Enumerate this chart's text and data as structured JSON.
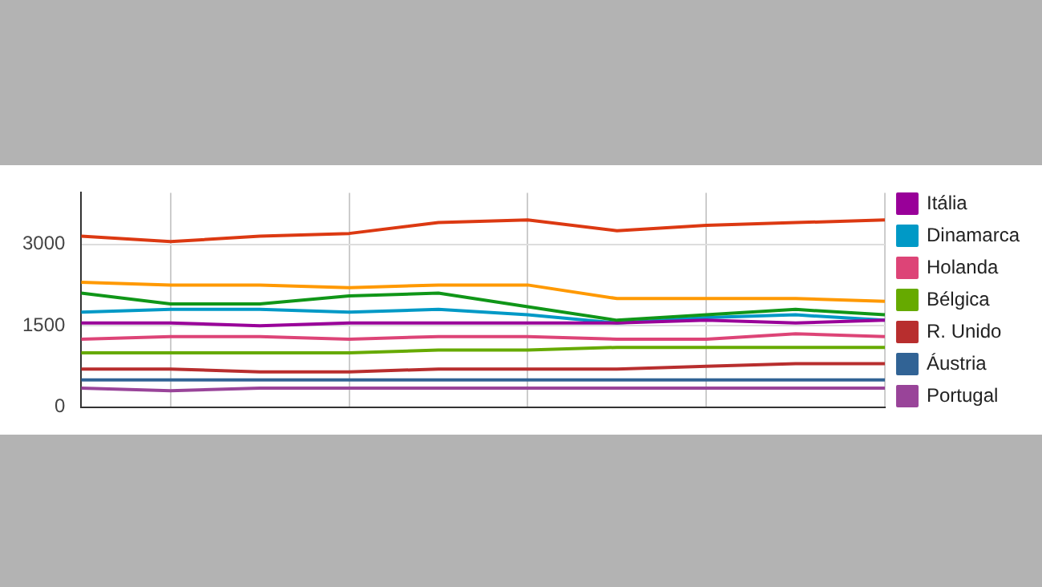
{
  "chart_data": {
    "type": "line",
    "categories": [
      null,
      null,
      null,
      null,
      null,
      null,
      null,
      null,
      null,
      null
    ],
    "series": [
      {
        "color": "#dc3912",
        "values": [
          3150,
          3050,
          3150,
          3200,
          3400,
          3450,
          3250,
          3350,
          3400,
          3450
        ]
      },
      {
        "color": "#ff9900",
        "values": [
          2300,
          2250,
          2250,
          2200,
          2250,
          2250,
          2000,
          2000,
          2000,
          1950
        ]
      },
      {
        "color": "#109618",
        "values": [
          2100,
          1900,
          1900,
          2050,
          2100,
          1850,
          1600,
          1700,
          1800,
          1700
        ]
      },
      {
        "name": "Itália",
        "color": "#990099",
        "values": [
          1550,
          1550,
          1500,
          1550,
          1550,
          1550,
          1550,
          1600,
          1550,
          1600
        ]
      },
      {
        "name": "Dinamarca",
        "color": "#0099c6",
        "values": [
          1750,
          1800,
          1800,
          1750,
          1800,
          1700,
          1550,
          1650,
          1700,
          1600
        ]
      },
      {
        "name": "Holanda",
        "color": "#dd4477",
        "values": [
          1250,
          1300,
          1300,
          1250,
          1300,
          1300,
          1250,
          1250,
          1350,
          1300
        ]
      },
      {
        "name": "Bélgica",
        "color": "#66aa00",
        "values": [
          1000,
          1000,
          1000,
          1000,
          1050,
          1050,
          1100,
          1100,
          1100,
          1100
        ]
      },
      {
        "name": "R. Unido",
        "color": "#b82e2e",
        "values": [
          700,
          700,
          650,
          650,
          700,
          700,
          700,
          750,
          800,
          800
        ]
      },
      {
        "name": "Áustria",
        "color": "#316395",
        "values": [
          500,
          500,
          500,
          500,
          500,
          500,
          500,
          500,
          500,
          500
        ]
      },
      {
        "name": "Portugal",
        "color": "#994499",
        "values": [
          350,
          300,
          350,
          350,
          350,
          350,
          350,
          350,
          350,
          350
        ]
      }
    ],
    "ylim": [
      0,
      3950
    ],
    "yticks": [
      0,
      1500,
      3000
    ],
    "grid": true,
    "legend": "right",
    "tick_labels": "y",
    "marker": "none",
    "line_style": "solid"
  }
}
